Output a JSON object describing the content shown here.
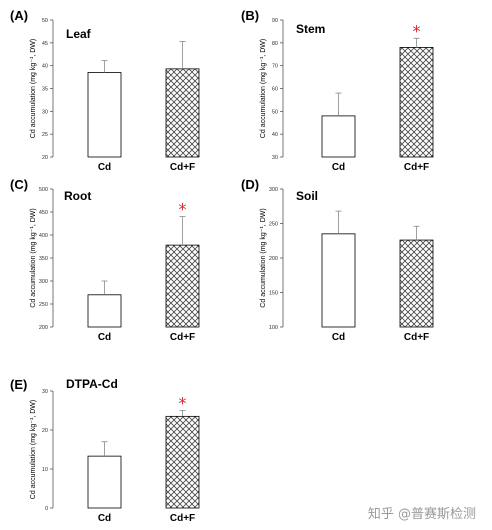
{
  "watermark": "知乎 @普赛斯检测",
  "y_axis_label": "Cd accumulation (mg kg⁻¹, DW)",
  "colors": {
    "significance": "#e02020",
    "bar_edge": "#000000",
    "hatch": "#444444",
    "axis": "#555555"
  },
  "chart_data": [
    {
      "type": "bar",
      "panel": "(A)",
      "title": "Leaf",
      "categories": [
        "Cd",
        "Cd+F"
      ],
      "values": [
        38.5,
        39.3
      ],
      "errors": [
        2.6,
        6.0
      ],
      "significant": [
        false,
        false
      ],
      "ylabel": "Cd accumulation (mg kg⁻¹, DW)",
      "ylim": [
        20,
        50
      ],
      "yticks": [
        20,
        25,
        30,
        35,
        40,
        45,
        50
      ],
      "fills": [
        "plain",
        "crosshatch"
      ]
    },
    {
      "type": "bar",
      "panel": "(B)",
      "title": "Stem",
      "categories": [
        "Cd",
        "Cd+F"
      ],
      "values": [
        48,
        78
      ],
      "errors": [
        10,
        4
      ],
      "significant": [
        false,
        true
      ],
      "ylabel": "Cd accumulation (mg kg⁻¹, DW)",
      "ylim": [
        30,
        90
      ],
      "yticks": [
        30,
        40,
        50,
        60,
        70,
        80,
        90
      ],
      "fills": [
        "plain",
        "crosshatch"
      ]
    },
    {
      "type": "bar",
      "panel": "(C)",
      "title": "Root",
      "categories": [
        "Cd",
        "Cd+F"
      ],
      "values": [
        270,
        378
      ],
      "errors": [
        30,
        62
      ],
      "significant": [
        false,
        true
      ],
      "ylabel": "Cd accumulation (mg kg⁻¹, DW)",
      "ylim": [
        200,
        500
      ],
      "yticks": [
        200,
        250,
        300,
        350,
        400,
        450,
        500
      ],
      "fills": [
        "plain",
        "crosshatch"
      ]
    },
    {
      "type": "bar",
      "panel": "(D)",
      "title": "Soil",
      "categories": [
        "Cd",
        "Cd+F"
      ],
      "values": [
        235,
        226
      ],
      "errors": [
        33,
        20
      ],
      "significant": [
        false,
        false
      ],
      "ylabel": "Cd accumulation (mg kg⁻¹, DW)",
      "ylim": [
        100,
        300
      ],
      "yticks": [
        100,
        150,
        200,
        250,
        300
      ],
      "fills": [
        "plain",
        "crosshatch"
      ]
    },
    {
      "type": "bar",
      "panel": "(E)",
      "title": "DTPA-Cd",
      "categories": [
        "Cd",
        "Cd+F"
      ],
      "values": [
        13.3,
        23.5
      ],
      "errors": [
        3.7,
        1.5
      ],
      "significant": [
        false,
        true
      ],
      "ylabel": "Cd accumulation (mg kg⁻¹, DW)",
      "ylim": [
        0,
        30
      ],
      "yticks": [
        0,
        10,
        20,
        30
      ],
      "fills": [
        "plain",
        "crosshatch"
      ]
    }
  ]
}
